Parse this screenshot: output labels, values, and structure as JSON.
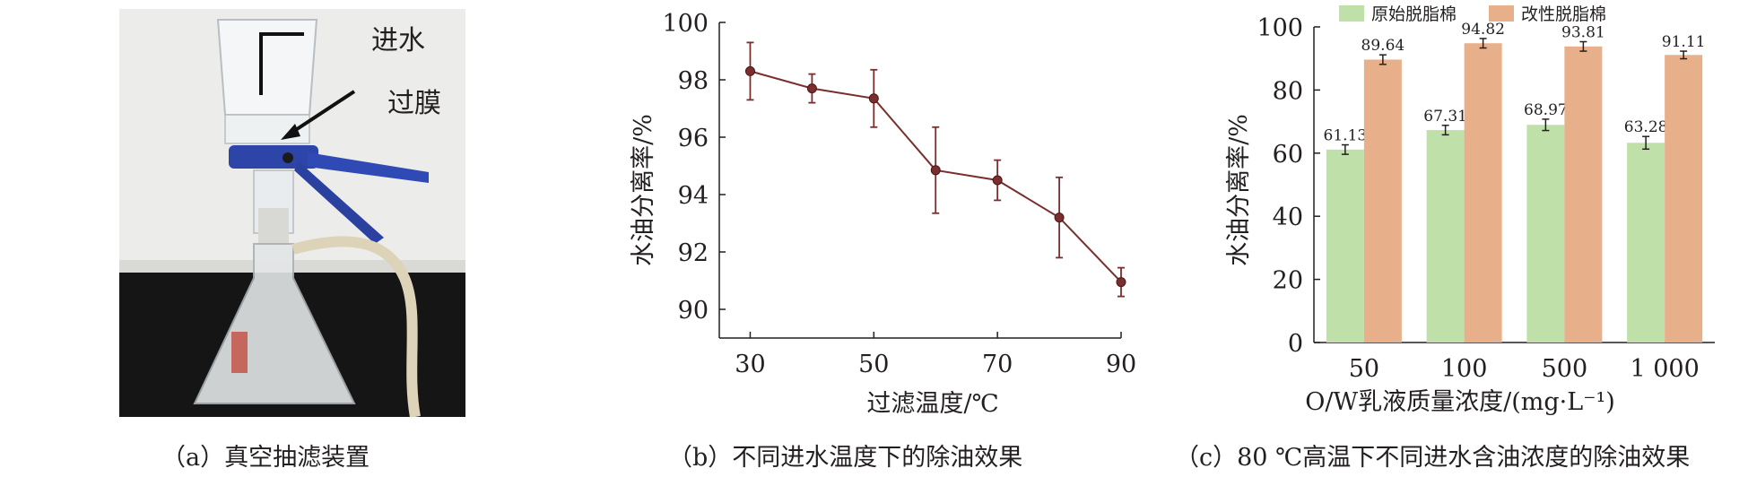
{
  "panel_a": {
    "caption": "（a）真空抽滤装置",
    "labels": {
      "water_in": "进水",
      "membrane": "过膜"
    }
  },
  "panel_b": {
    "caption": "（b）不同进水温度下的除油效果"
  },
  "panel_c": {
    "caption": "（c）80 ℃高温下不同进水含油浓度的除油效果"
  },
  "colors": {
    "line": "#7a2e2e",
    "bar_original": "#bfe0a8",
    "bar_modified": "#e8b08a"
  },
  "chart_data": [
    {
      "type": "line",
      "xlabel": "过滤温度/℃",
      "ylabel": "水油分离率/%",
      "x": [
        30,
        40,
        50,
        60,
        70,
        80,
        90
      ],
      "y": [
        98.3,
        97.7,
        97.35,
        94.85,
        94.5,
        93.2,
        90.95
      ],
      "yerr": [
        1.0,
        0.5,
        1.0,
        1.5,
        0.7,
        1.4,
        0.5
      ],
      "xticks": [
        "30",
        "50",
        "70",
        "90"
      ],
      "xtick_values": [
        30,
        50,
        70,
        90
      ],
      "yticks": [
        "90",
        "92",
        "94",
        "96",
        "98",
        "100"
      ],
      "ytick_values": [
        90,
        92,
        94,
        96,
        98,
        100
      ],
      "xlim": [
        25,
        90
      ],
      "ylim": [
        89,
        100
      ],
      "grid": false
    },
    {
      "type": "bar",
      "xlabel": "O/W乳液质量浓度/(mg·L⁻¹)",
      "ylabel": "水油分离率/%",
      "categories": [
        "50",
        "100",
        "500",
        "1 000"
      ],
      "series": [
        {
          "name": "原始脱脂棉",
          "values": [
            61.13,
            67.31,
            68.97,
            63.28
          ],
          "labels": [
            "61.13",
            "67.31",
            "68.97",
            "63.28"
          ],
          "errors": [
            1.5,
            1.5,
            1.8,
            2.0
          ]
        },
        {
          "name": "改性脱脂棉",
          "values": [
            89.64,
            94.82,
            93.81,
            91.11
          ],
          "labels": [
            "89.64",
            "94.82",
            "93.81",
            "91.11"
          ],
          "errors": [
            1.5,
            1.5,
            1.5,
            1.2
          ]
        }
      ],
      "yticks": [
        "0",
        "20",
        "40",
        "60",
        "80",
        "100"
      ],
      "ytick_values": [
        0,
        20,
        40,
        60,
        80,
        100
      ],
      "ylim": [
        0,
        100
      ],
      "legend": "top",
      "grid": false
    }
  ]
}
